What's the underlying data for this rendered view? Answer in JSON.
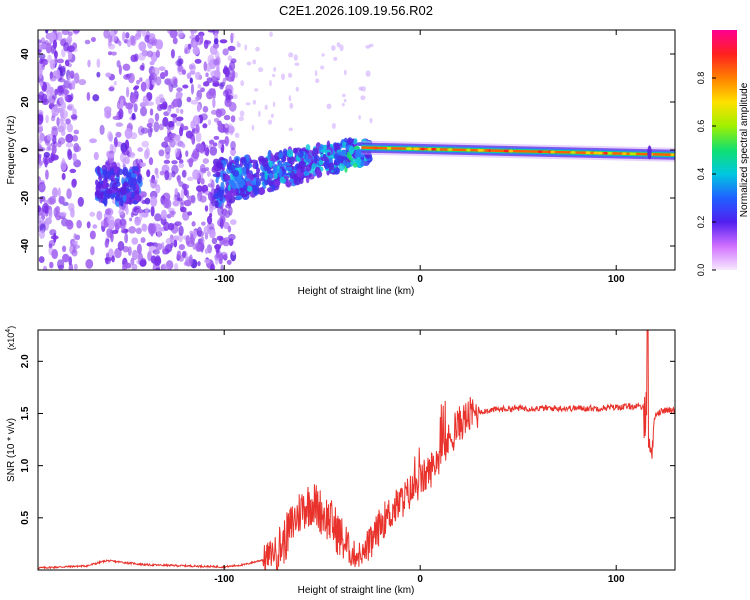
{
  "title": "C2E1.2026.109.19.56.R02",
  "chart_data": [
    {
      "type": "heatmap",
      "xlabel": "Height of straight line (km)",
      "ylabel": "Frequency (Hz)",
      "xlim": [
        -195,
        130
      ],
      "ylim": [
        -50,
        50
      ],
      "xticks": [
        -100,
        0,
        100
      ],
      "xtick_labels": [
        "-100",
        "0",
        "100"
      ],
      "yticks": [
        -40,
        -20,
        0,
        20,
        40
      ],
      "ytick_labels": [
        "-40",
        "-20",
        "0",
        "20",
        "40"
      ],
      "colorbar": {
        "label": "Normalized spectral amplitude",
        "range": [
          0,
          1
        ],
        "ticks": [
          0.0,
          0.2,
          0.4,
          0.6,
          0.8
        ],
        "tick_labels": [
          "0.0",
          "0.2",
          "0.4",
          "0.6",
          "0.8"
        ]
      },
      "features": [
        {
          "name": "noise-field",
          "x": [
            -195,
            -100
          ],
          "y": [
            -50,
            50
          ],
          "amplitude": 0.1
        },
        {
          "name": "blob-left",
          "x": -155,
          "y": -15,
          "amplitude": 0.35
        },
        {
          "name": "rising-band",
          "x": [
            -100,
            -30
          ],
          "y": [
            -15,
            0
          ],
          "amplitude": 0.4
        },
        {
          "name": "carrier-line",
          "x": [
            -30,
            130
          ],
          "y": [
            1,
            -2
          ],
          "amplitude": 0.95
        }
      ]
    },
    {
      "type": "line",
      "xlabel": "Height of straight line (km)",
      "ylabel": "SNR (10 * v/v)",
      "y_multiplier": "(x10",
      "y_multiplier_exp": "4",
      "y_multiplier_close": ")",
      "xlim": [
        -195,
        130
      ],
      "ylim": [
        0,
        2.3
      ],
      "xticks": [
        -100,
        0,
        100
      ],
      "xtick_labels": [
        "-100",
        "0",
        "100"
      ],
      "yticks": [
        0.5,
        1.0,
        1.5,
        2.0
      ],
      "ytick_labels": [
        "0.5",
        "1.0",
        "1.5",
        "2.0"
      ],
      "series": [
        {
          "name": "SNR",
          "color": "#e8322b",
          "x": [
            -195,
            -170,
            -160,
            -140,
            -100,
            -90,
            -80,
            -70,
            -65,
            -60,
            -55,
            -50,
            -45,
            -40,
            -35,
            -30,
            -25,
            -20,
            -15,
            -10,
            -5,
            0,
            5,
            10,
            15,
            20,
            25,
            30,
            40,
            50,
            60,
            70,
            80,
            90,
            100,
            110,
            115,
            117,
            120,
            125,
            130
          ],
          "y": [
            0.02,
            0.04,
            0.09,
            0.05,
            0.03,
            0.05,
            0.1,
            0.25,
            0.45,
            0.6,
            0.65,
            0.55,
            0.45,
            0.3,
            0.15,
            0.15,
            0.25,
            0.45,
            0.55,
            0.65,
            0.75,
            0.85,
            0.95,
            1.1,
            1.25,
            1.4,
            1.48,
            1.52,
            1.54,
            1.55,
            1.55,
            1.55,
            1.55,
            1.55,
            1.56,
            1.57,
            1.55,
            1.1,
            1.5,
            1.53,
            1.53
          ]
        }
      ]
    }
  ]
}
